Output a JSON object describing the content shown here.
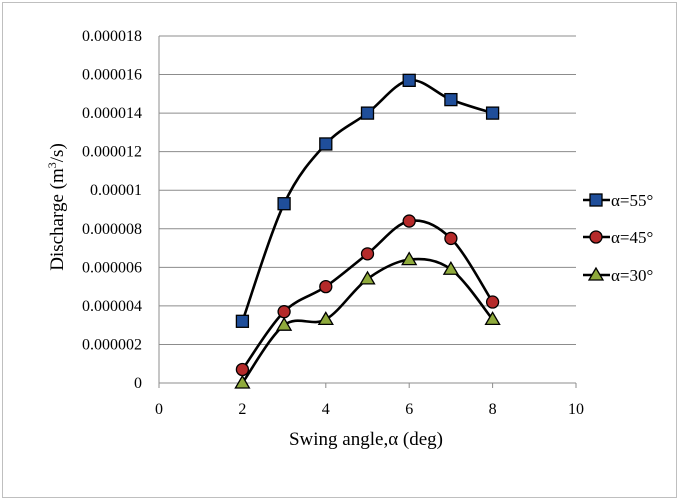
{
  "chart_data": {
    "type": "line",
    "xlabel": "Swing angle,α (deg)",
    "ylabel_main": "Discharge (m",
    "ylabel_sup": "3",
    "ylabel_tail": "/s)",
    "xlim": [
      0,
      10
    ],
    "ylim": [
      0,
      1.8e-05
    ],
    "x_ticks": [
      "0",
      "2",
      "4",
      "6",
      "8",
      "10"
    ],
    "y_ticks": [
      "0",
      "0.000002",
      "0.000004",
      "0.000006",
      "0.000008",
      "0.00001",
      "0.000012",
      "0.000014",
      "0.000016",
      "0.000018"
    ],
    "grid": "horizontal",
    "legend_position": "right",
    "series": [
      {
        "name": "α=55°",
        "marker": "square",
        "marker_color": "#1f4e9a",
        "x": [
          2,
          3,
          4,
          5,
          6,
          7,
          8
        ],
        "y": [
          3.2e-06,
          9.3e-06,
          1.24e-05,
          1.4e-05,
          1.57e-05,
          1.47e-05,
          1.4e-05
        ]
      },
      {
        "name": "α=45°",
        "marker": "circle",
        "marker_color": "#b52a2a",
        "x": [
          2,
          3,
          4,
          5,
          6,
          7,
          8
        ],
        "y": [
          7e-07,
          3.7e-06,
          5e-06,
          6.7e-06,
          8.4e-06,
          7.5e-06,
          4.2e-06
        ]
      },
      {
        "name": "α=30°",
        "marker": "triangle",
        "marker_color": "#8faa3c",
        "x": [
          2,
          3,
          4,
          5,
          6,
          7,
          8
        ],
        "y": [
          0,
          3e-06,
          3.3e-06,
          5.4e-06,
          6.4e-06,
          5.9e-06,
          3.3e-06
        ]
      }
    ]
  }
}
